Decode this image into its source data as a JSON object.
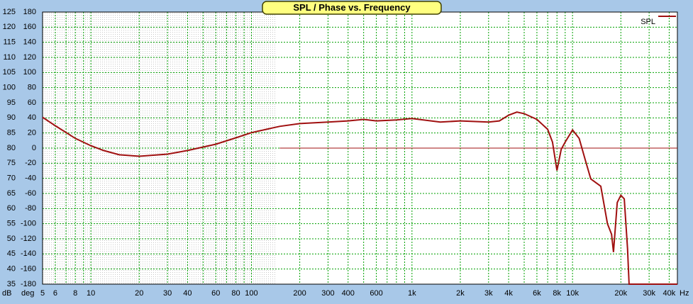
{
  "chart_data": {
    "type": "line",
    "title": "SPL / Phase vs. Frequency",
    "x_unit": "Hz",
    "y_unit": "dB",
    "y2_unit": "deg",
    "log_x": true,
    "grid": true,
    "legend": "top-right",
    "xlim": [
      5,
      45000
    ],
    "ylim": [
      35,
      125
    ],
    "y2lim": [
      -180,
      180
    ],
    "xticks": [
      5,
      6,
      8,
      10,
      20,
      30,
      40,
      60,
      80,
      100,
      200,
      300,
      400,
      600,
      {
        "value": 1000,
        "label": "1k"
      },
      {
        "value": 2000,
        "label": "2k"
      },
      {
        "value": 3000,
        "label": "3k"
      },
      {
        "value": 4000,
        "label": "4k"
      },
      {
        "value": 6000,
        "label": "6k"
      },
      {
        "value": 8000,
        "label": "8k"
      },
      {
        "value": 10000,
        "label": "10k"
      },
      {
        "value": 20000,
        "label": "20k"
      },
      {
        "value": 30000,
        "label": "30k"
      },
      {
        "value": 40000,
        "label": "40k"
      }
    ],
    "xgrid": [
      7,
      9,
      50,
      70,
      90,
      500,
      700,
      800,
      900,
      5000,
      7000,
      9000
    ],
    "yticks": [
      35,
      40,
      45,
      50,
      55,
      60,
      65,
      70,
      75,
      80,
      85,
      90,
      95,
      100,
      105,
      110,
      115,
      120,
      125
    ],
    "y2ticks": [
      -180,
      -160,
      -140,
      -120,
      -100,
      -80,
      -60,
      -40,
      -20,
      0,
      20,
      40,
      60,
      80,
      100,
      120,
      140,
      160,
      180
    ],
    "series": [
      {
        "name": "SPL",
        "color": "#a01010",
        "x": [
          5,
          6,
          8,
          10,
          12,
          15,
          20,
          30,
          40,
          60,
          80,
          100,
          150,
          200,
          300,
          400,
          500,
          600,
          800,
          1000,
          1500,
          2000,
          3000,
          3500,
          4000,
          4500,
          5000,
          6000,
          7000,
          7500,
          8000,
          8500,
          9000,
          10000,
          11000,
          12000,
          13000,
          15000,
          16500,
          17500,
          18000,
          19000,
          20000,
          21000,
          22000,
          22500,
          40000,
          45000
        ],
        "values": [
          90.2,
          87.4,
          83.2,
          80.8,
          79.2,
          77.8,
          77.3,
          78.0,
          79.2,
          81.3,
          83.4,
          85.1,
          87.2,
          88.1,
          88.6,
          89.0,
          89.5,
          89.0,
          89.3,
          89.8,
          88.6,
          89.0,
          88.6,
          89.0,
          90.9,
          91.9,
          91.4,
          89.5,
          86.2,
          82.0,
          72.6,
          79.6,
          82.0,
          86.0,
          83.2,
          76.1,
          69.8,
          67.4,
          55.0,
          51.5,
          45.6,
          62.0,
          64.4,
          63.2,
          46.8,
          35.0,
          35.0,
          35.0
        ]
      },
      {
        "color": "#a01010",
        "axis": "y2",
        "x": [
          150,
          45000
        ],
        "values": [
          0,
          0
        ]
      }
    ]
  }
}
